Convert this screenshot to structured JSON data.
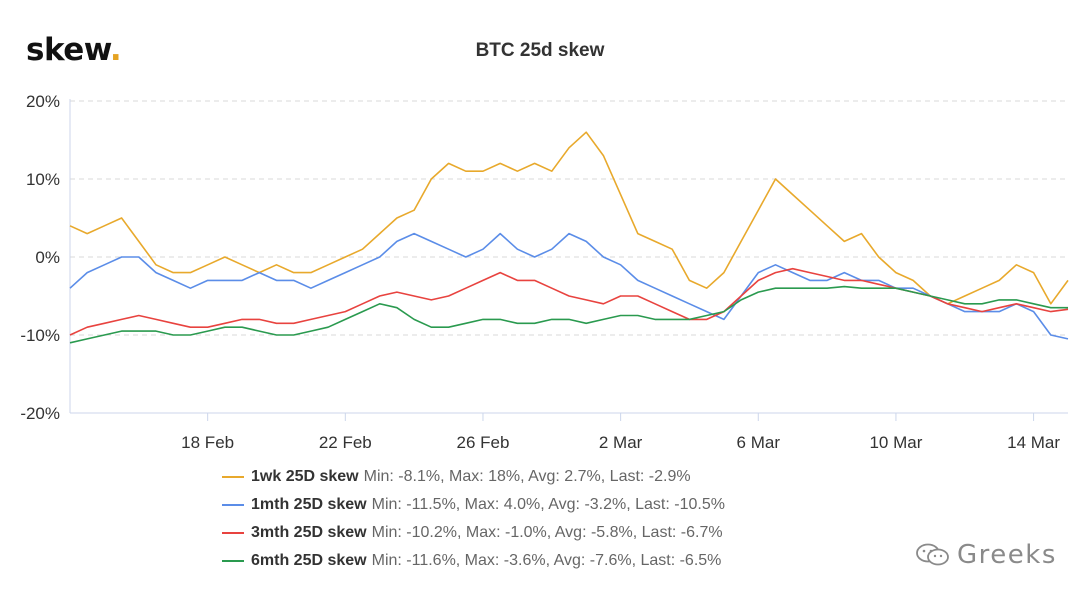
{
  "brand": {
    "name": "skew",
    "dot": "."
  },
  "watermark": {
    "text": "Greeks"
  },
  "chart_data": {
    "type": "line",
    "title": "BTC 25d skew",
    "xlabel": "",
    "ylabel": "",
    "y_ticks": [
      "20%",
      "10%",
      "0%",
      "-10%",
      "-20%"
    ],
    "y_tick_values": [
      20,
      10,
      0,
      -10,
      -20
    ],
    "x_ticks": [
      "18 Feb",
      "22 Feb",
      "26 Feb",
      "2 Mar",
      "6 Mar",
      "10 Mar",
      "14 Mar"
    ],
    "x_tick_days": [
      4,
      8,
      12,
      16,
      20,
      24,
      28
    ],
    "xlim_days": [
      0,
      29.0
    ],
    "ylim": [
      -20,
      20
    ],
    "grid": "horizontal dashed",
    "legend_position": "bottom",
    "series": [
      {
        "name": "1wk 25D skew",
        "stats": "Min: -8.1%, Max: 18%, Avg: 2.7%, Last: -2.9%",
        "color": "#e8a92c",
        "x": [
          0,
          0.5,
          1,
          1.5,
          2,
          2.5,
          3,
          3.5,
          4,
          4.5,
          5,
          5.5,
          6,
          6.5,
          7,
          7.5,
          8,
          8.5,
          9,
          9.5,
          10,
          10.5,
          11,
          11.5,
          12,
          12.5,
          13,
          13.5,
          14,
          14.5,
          15,
          15.5,
          16,
          16.5,
          17,
          17.5,
          18,
          18.5,
          19,
          19.5,
          20,
          20.5,
          21,
          21.5,
          22,
          22.5,
          23,
          23.5,
          24,
          24.5,
          25,
          25.5,
          26,
          26.5,
          27,
          27.5,
          28,
          28.5,
          29
        ],
        "y": [
          4,
          3,
          4,
          5,
          2,
          -1,
          -2,
          -2,
          -1,
          0,
          -1,
          -2,
          -1,
          -2,
          -2,
          -1,
          0,
          1,
          3,
          5,
          6,
          10,
          12,
          11,
          11,
          12,
          11,
          12,
          11,
          14,
          16,
          13,
          8,
          3,
          2,
          1,
          -3,
          -4,
          -2,
          2,
          6,
          10,
          8,
          6,
          4,
          2,
          3,
          0,
          -2,
          -3,
          -5,
          -6,
          -5,
          -4,
          -3,
          -1,
          -2,
          -6,
          -3
        ]
      },
      {
        "name": "1mth 25D skew",
        "stats": "Min: -11.5%, Max: 4.0%, Avg: -3.2%, Last: -10.5%",
        "color": "#5b8de8",
        "x": [
          0,
          0.5,
          1,
          1.5,
          2,
          2.5,
          3,
          3.5,
          4,
          4.5,
          5,
          5.5,
          6,
          6.5,
          7,
          7.5,
          8,
          8.5,
          9,
          9.5,
          10,
          10.5,
          11,
          11.5,
          12,
          12.5,
          13,
          13.5,
          14,
          14.5,
          15,
          15.5,
          16,
          16.5,
          17,
          17.5,
          18,
          18.5,
          19,
          19.5,
          20,
          20.5,
          21,
          21.5,
          22,
          22.5,
          23,
          23.5,
          24,
          24.5,
          25,
          25.5,
          26,
          26.5,
          27,
          27.5,
          28,
          28.5,
          29
        ],
        "y": [
          -4,
          -2,
          -1,
          0,
          0,
          -2,
          -3,
          -4,
          -3,
          -3,
          -3,
          -2,
          -3,
          -3,
          -4,
          -3,
          -2,
          -1,
          0,
          2,
          3,
          2,
          1,
          0,
          1,
          3,
          1,
          0,
          1,
          3,
          2,
          0,
          -1,
          -3,
          -4,
          -5,
          -6,
          -7,
          -8,
          -5,
          -2,
          -1,
          -2,
          -3,
          -3,
          -2,
          -3,
          -3,
          -4,
          -4,
          -5,
          -6,
          -7,
          -7,
          -7,
          -6,
          -7,
          -10,
          -10.5
        ]
      },
      {
        "name": "3mth 25D skew",
        "stats": "Min: -10.2%, Max: -1.0%, Avg: -5.8%, Last: -6.7%",
        "color": "#e8433f",
        "x": [
          0,
          0.5,
          1,
          1.5,
          2,
          2.5,
          3,
          3.5,
          4,
          4.5,
          5,
          5.5,
          6,
          6.5,
          7,
          7.5,
          8,
          8.5,
          9,
          9.5,
          10,
          10.5,
          11,
          11.5,
          12,
          12.5,
          13,
          13.5,
          14,
          14.5,
          15,
          15.5,
          16,
          16.5,
          17,
          17.5,
          18,
          18.5,
          19,
          19.5,
          20,
          20.5,
          21,
          21.5,
          22,
          22.5,
          23,
          23.5,
          24,
          24.5,
          25,
          25.5,
          26,
          26.5,
          27,
          27.5,
          28,
          28.5,
          29
        ],
        "y": [
          -10,
          -9,
          -8.5,
          -8,
          -7.5,
          -8,
          -8.5,
          -9,
          -9,
          -8.5,
          -8,
          -8,
          -8.5,
          -8.5,
          -8,
          -7.5,
          -7,
          -6,
          -5,
          -4.5,
          -5,
          -5.5,
          -5,
          -4,
          -3,
          -2,
          -3,
          -3,
          -4,
          -5,
          -5.5,
          -6,
          -5,
          -5,
          -6,
          -7,
          -8,
          -8,
          -7,
          -5,
          -3,
          -2,
          -1.5,
          -2,
          -2.5,
          -3,
          -3,
          -3.5,
          -4,
          -4.5,
          -5,
          -6,
          -6.5,
          -7,
          -6.5,
          -6,
          -6.5,
          -7,
          -6.7
        ]
      },
      {
        "name": "6mth 25D skew",
        "stats": "Min: -11.6%, Max: -3.6%, Avg: -7.6%, Last: -6.5%",
        "color": "#2a9a4f",
        "x": [
          0,
          0.5,
          1,
          1.5,
          2,
          2.5,
          3,
          3.5,
          4,
          4.5,
          5,
          5.5,
          6,
          6.5,
          7,
          7.5,
          8,
          8.5,
          9,
          9.5,
          10,
          10.5,
          11,
          11.5,
          12,
          12.5,
          13,
          13.5,
          14,
          14.5,
          15,
          15.5,
          16,
          16.5,
          17,
          17.5,
          18,
          18.5,
          19,
          19.5,
          20,
          20.5,
          21,
          21.5,
          22,
          22.5,
          23,
          23.5,
          24,
          24.5,
          25,
          25.5,
          26,
          26.5,
          27,
          27.5,
          28,
          28.5,
          29
        ],
        "y": [
          -11,
          -10.5,
          -10,
          -9.5,
          -9.5,
          -9.5,
          -10,
          -10,
          -9.5,
          -9,
          -9,
          -9.5,
          -10,
          -10,
          -9.5,
          -9,
          -8,
          -7,
          -6,
          -6.5,
          -8,
          -9,
          -9,
          -8.5,
          -8,
          -8,
          -8.5,
          -8.5,
          -8,
          -8,
          -8.5,
          -8,
          -7.5,
          -7.5,
          -8,
          -8,
          -8,
          -7.5,
          -7,
          -5.5,
          -4.5,
          -4,
          -4,
          -4,
          -4,
          -3.8,
          -4,
          -4,
          -4,
          -4.5,
          -5,
          -5.5,
          -6,
          -6,
          -5.5,
          -5.5,
          -6,
          -6.5,
          -6.5
        ]
      }
    ]
  }
}
